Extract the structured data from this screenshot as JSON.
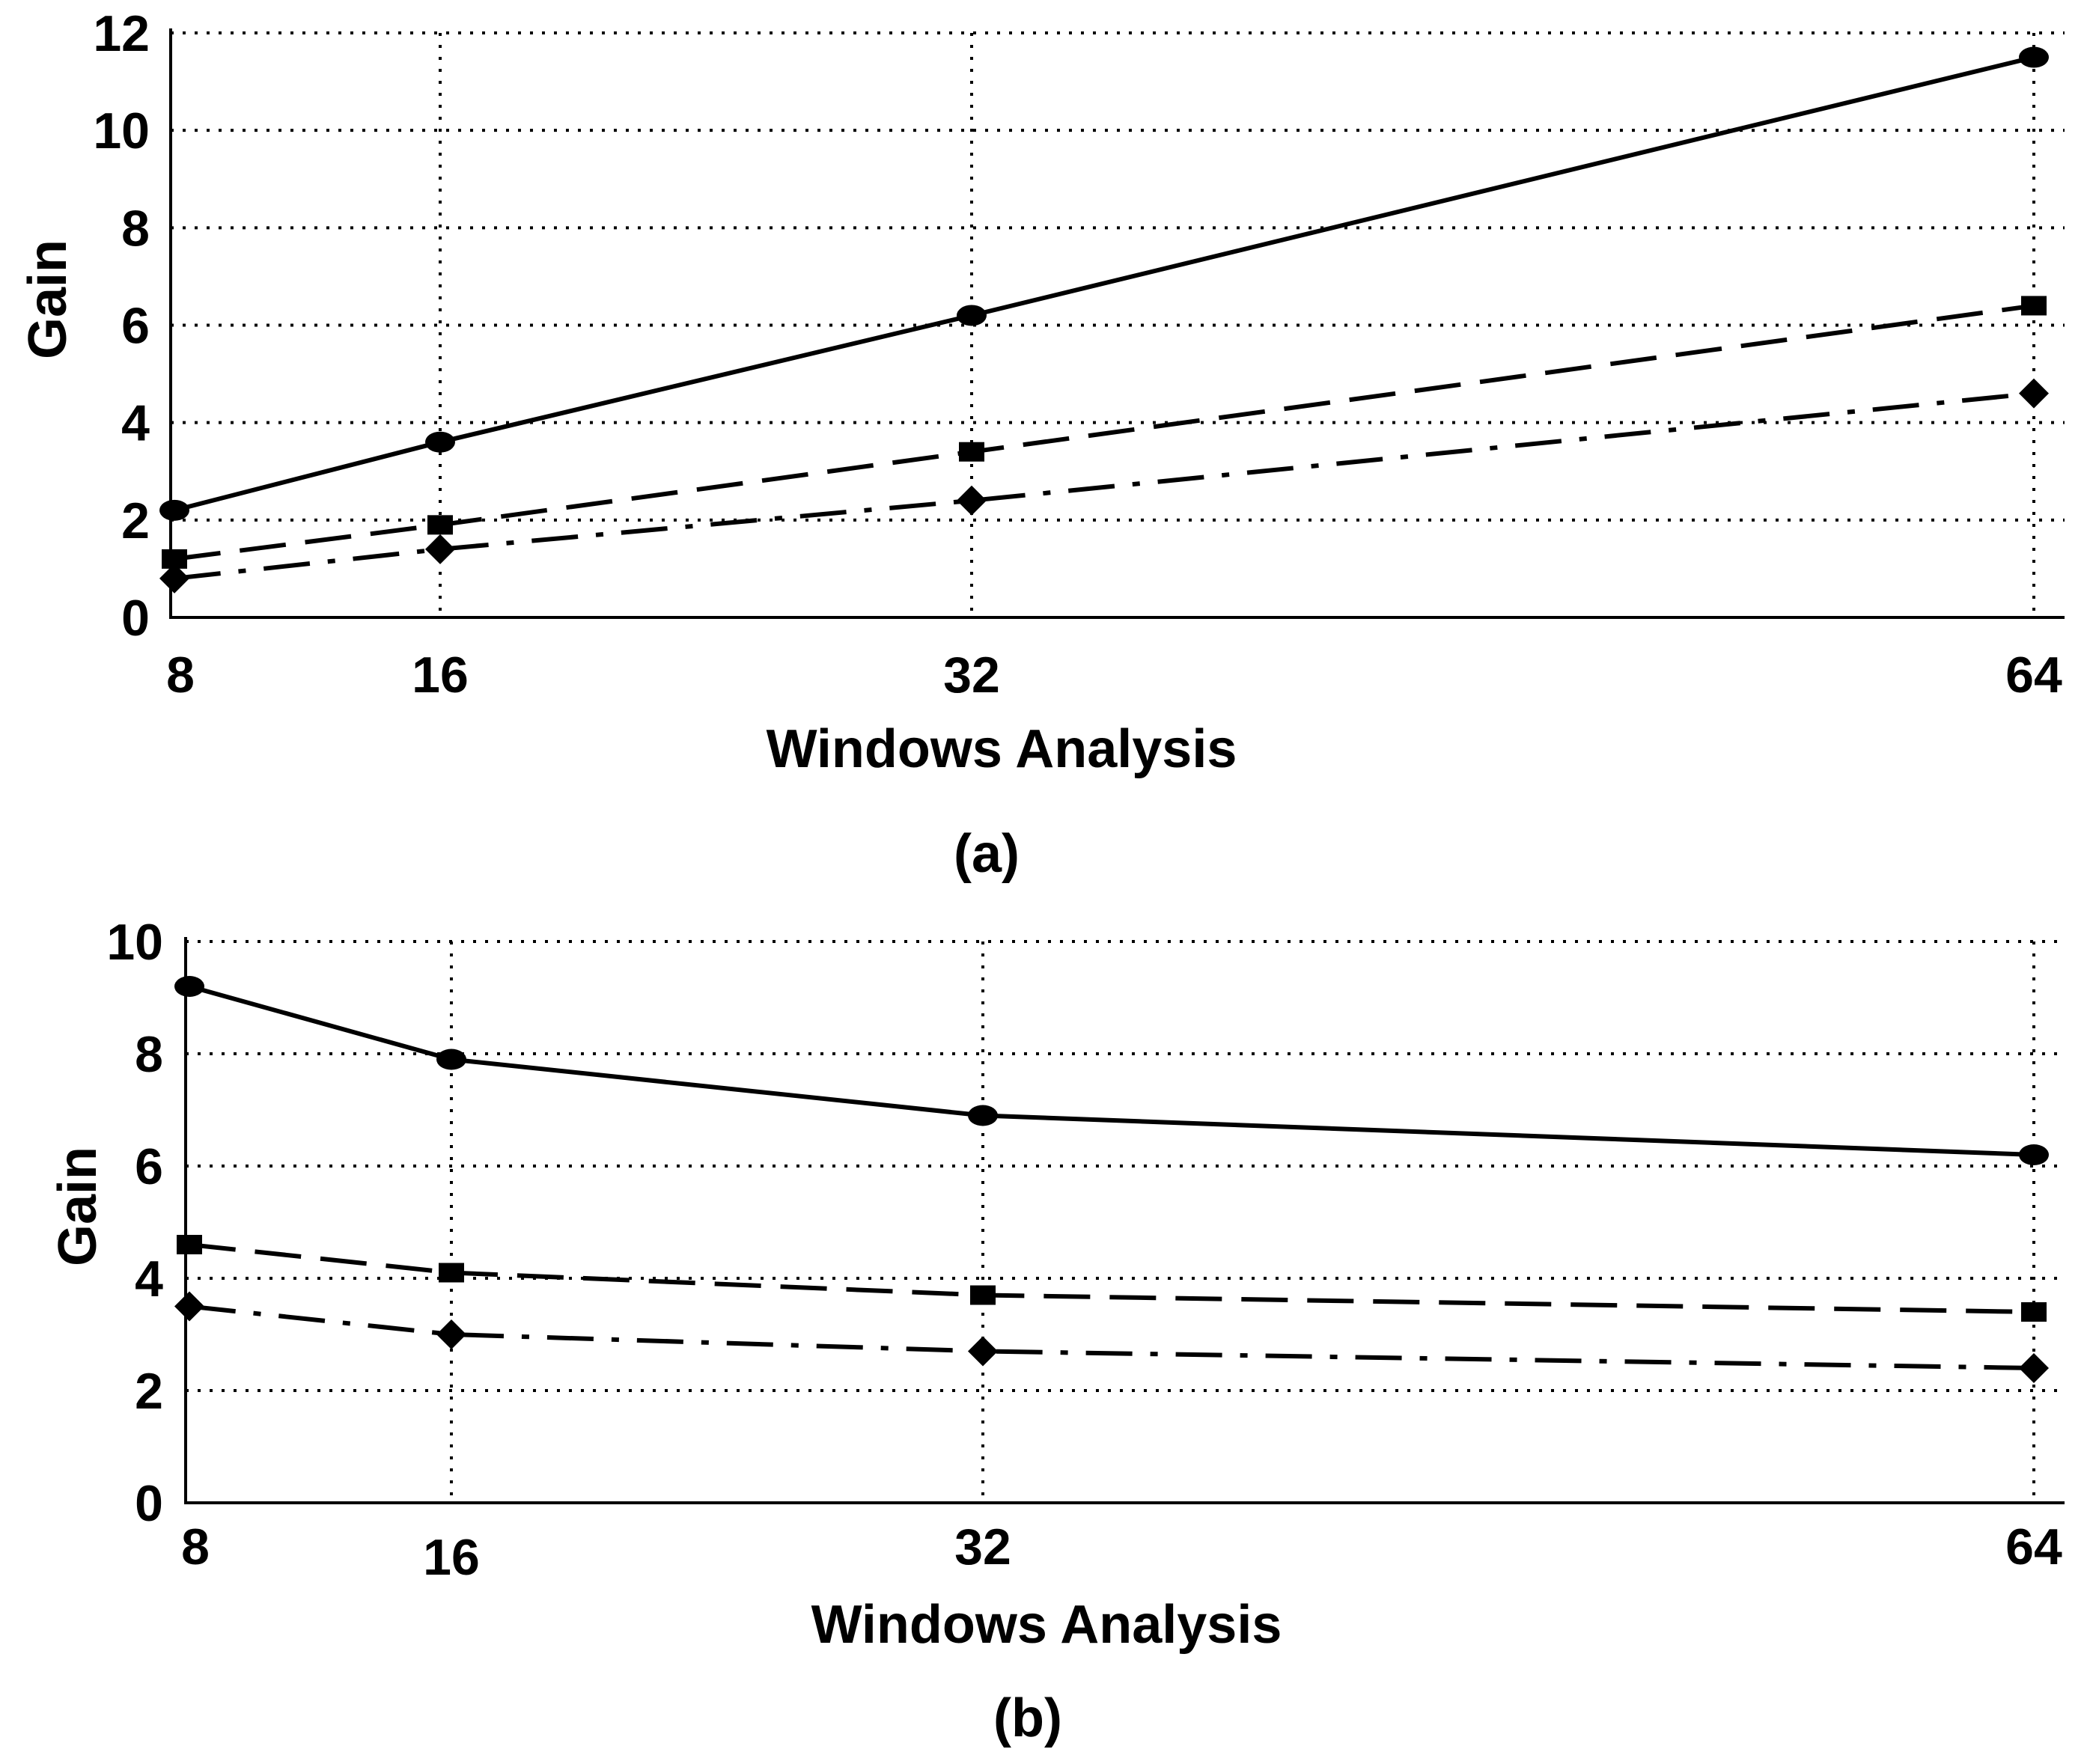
{
  "colors": {
    "line": "#000000",
    "grid": "#000000",
    "background": "#ffffff"
  },
  "chart_data": [
    {
      "type": "line",
      "panel_label": "(a)",
      "xlabel": "Windows Analysis",
      "ylabel": "Gain",
      "x": [
        8,
        16,
        32,
        64
      ],
      "x_ticks": [
        "8",
        "16",
        "32",
        "64"
      ],
      "ylim": [
        0,
        12
      ],
      "y_ticks": [
        0,
        2,
        4,
        6,
        8,
        10,
        12
      ],
      "grid": true,
      "series": [
        {
          "style": "solid",
          "marker": "circle",
          "values": [
            2.2,
            3.6,
            6.2,
            11.5
          ]
        },
        {
          "style": "dashed",
          "marker": "square",
          "values": [
            1.2,
            1.9,
            3.4,
            6.4
          ]
        },
        {
          "style": "dash-dot",
          "marker": "diamond",
          "values": [
            0.8,
            1.4,
            2.4,
            4.6
          ]
        }
      ]
    },
    {
      "type": "line",
      "panel_label": "(b)",
      "xlabel": "Windows Analysis",
      "ylabel": "Gain",
      "x": [
        8,
        16,
        32,
        64
      ],
      "x_ticks": [
        "8",
        "16",
        "32",
        "64"
      ],
      "ylim": [
        0,
        10
      ],
      "y_ticks": [
        0,
        2,
        4,
        6,
        8,
        10
      ],
      "grid": true,
      "series": [
        {
          "style": "solid",
          "marker": "circle",
          "values": [
            9.2,
            7.9,
            6.9,
            6.2
          ]
        },
        {
          "style": "dashed",
          "marker": "square",
          "values": [
            4.6,
            4.1,
            3.7,
            3.4
          ]
        },
        {
          "style": "dash-dot",
          "marker": "diamond",
          "values": [
            3.5,
            3.0,
            2.7,
            2.4
          ]
        }
      ]
    }
  ]
}
